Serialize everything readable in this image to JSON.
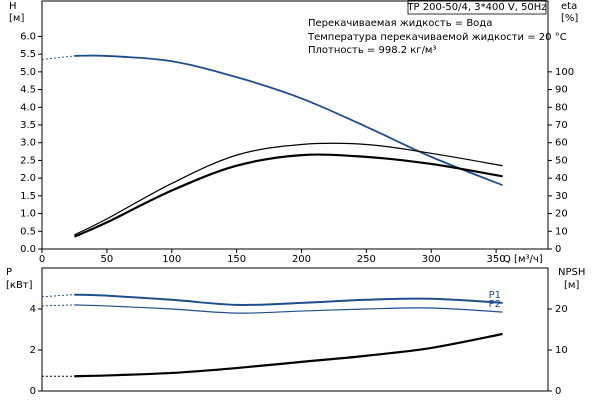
{
  "chart_data": [
    {
      "type": "line",
      "title": "TP 200-50/4, 3*400 V, 50Hz",
      "annotations": [
        "Перекачиваемая жидкость = Вода",
        "Температура перекачиваемой жидкости = 20 °C",
        "Плотность = 998.2 кг/м³"
      ],
      "y_label": "H",
      "y_unit": "[м]",
      "y2_label": "eta",
      "y2_unit": "[%]",
      "x_label": "Q [м³/ч]",
      "x": [
        0,
        25,
        50,
        100,
        150,
        200,
        250,
        300,
        355
      ],
      "xlim": [
        0,
        390
      ],
      "xticks": [
        0,
        50,
        100,
        150,
        200,
        250,
        300,
        350
      ],
      "ylim": [
        0,
        7
      ],
      "yticks": [
        {
          "value": 0,
          "label": "0.0"
        },
        0.5,
        {
          "value": 1,
          "label": "1.0"
        },
        1.5,
        {
          "value": 2,
          "label": "2.0"
        },
        2.5,
        {
          "value": 3,
          "label": "3.0"
        },
        3.5,
        {
          "value": 4,
          "label": "4.0"
        },
        4.5,
        {
          "value": 5,
          "label": "5.0"
        },
        5.5,
        {
          "value": 6,
          "label": "6.0"
        }
      ],
      "y2lim": [
        0,
        140
      ],
      "y2ticks": [
        0,
        10,
        20,
        30,
        40,
        50,
        60,
        70,
        80,
        90,
        100
      ],
      "series": [
        {
          "color": "#1f4e8c",
          "line_width": 1.8,
          "values": [
            null,
            5.45,
            5.45,
            5.3,
            4.85,
            4.25,
            3.45,
            2.6,
            1.8
          ]
        },
        {
          "color": "#1f4e8c",
          "line_width": 1,
          "line_style": "dotted",
          "values": [
            5.35,
            5.45,
            null,
            null,
            null,
            null,
            null,
            null,
            null
          ]
        },
        {
          "color": "#000000",
          "line_width": 1.2,
          "axis": "y2",
          "values": [
            null,
            8,
            17,
            37,
            53,
            59,
            59,
            54,
            47
          ]
        },
        {
          "color": "#000000",
          "line_width": 2.2,
          "axis": "y2",
          "values": [
            null,
            7,
            15,
            33,
            47,
            53,
            52,
            48,
            41
          ]
        }
      ]
    },
    {
      "type": "line",
      "y_label": "P",
      "y_unit": "[кВт]",
      "y2_label": "NPSH",
      "y2_unit": "[м]",
      "x": [
        0,
        25,
        50,
        100,
        150,
        200,
        250,
        300,
        355
      ],
      "xlim": [
        0,
        390
      ],
      "ylim": [
        0,
        6
      ],
      "yticks": [
        0,
        2,
        4
      ],
      "y2lim": [
        0,
        30
      ],
      "y2ticks": [
        0,
        10,
        20
      ],
      "series": [
        {
          "name": "P1",
          "color": "#1f4e8c",
          "line_width": 2,
          "values": [
            null,
            4.7,
            4.65,
            4.45,
            4.2,
            4.3,
            4.45,
            4.5,
            4.3
          ]
        },
        {
          "name": "P2",
          "color": "#1f4e8c",
          "line_width": 1.2,
          "values": [
            null,
            4.2,
            4.15,
            4.0,
            3.8,
            3.9,
            4.0,
            4.05,
            3.85
          ]
        },
        {
          "color": "#000000",
          "line_width": 2.2,
          "axis": "y2",
          "values": [
            null,
            3.6,
            3.8,
            4.4,
            5.6,
            7.1,
            8.6,
            10.5,
            13.9
          ]
        },
        {
          "color": "#1f4e8c",
          "line_width": 1,
          "line_style": "dotted",
          "values": [
            4.6,
            4.7,
            null,
            null,
            null,
            null,
            null,
            null,
            null
          ]
        },
        {
          "color": "#1f4e8c",
          "line_width": 1,
          "line_style": "dotted",
          "values": [
            4.15,
            4.2,
            null,
            null,
            null,
            null,
            null,
            null,
            null
          ]
        },
        {
          "color": "#000000",
          "line_width": 1,
          "line_style": "dotted",
          "axis": "y2",
          "values": [
            3.6,
            3.6,
            null,
            null,
            null,
            null,
            null,
            null,
            null
          ]
        }
      ]
    }
  ]
}
